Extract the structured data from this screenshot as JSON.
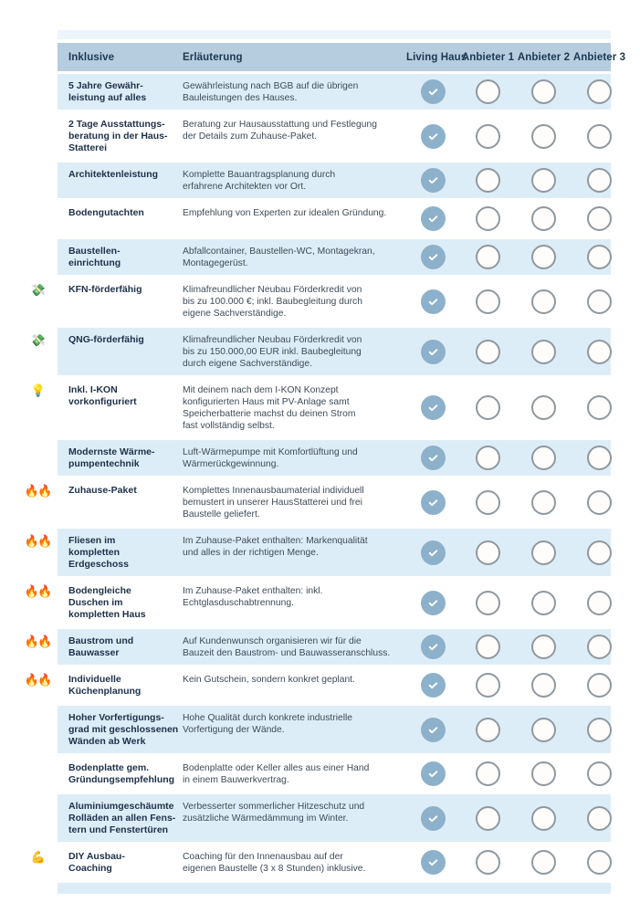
{
  "table": {
    "header": {
      "columns": [
        "Inklusive",
        "Erläuterung",
        "Living Haus",
        "Anbieter 1",
        "Anbieter 2",
        "Anbieter 3"
      ]
    },
    "provider_keys": [
      "living-haus",
      "anbieter-1",
      "anbieter-2",
      "anbieter-3"
    ],
    "rows": [
      {
        "icon": "",
        "icon_name": "",
        "title": "5 Jahre Gewähr-\nleistung auf alles",
        "description": "Gewährleistung nach BGB auf die übrigen\nBauleistungen des Hauses.",
        "checks": [
          true,
          false,
          false,
          false
        ]
      },
      {
        "icon": "",
        "icon_name": "",
        "title": "2 Tage Ausstattungs-\nberatung in der Haus-\nStatterei",
        "description": "Beratung zur Hausausstattung und Festlegung\nder Details zum Zuhause-Paket.",
        "checks": [
          true,
          false,
          false,
          false
        ]
      },
      {
        "icon": "",
        "icon_name": "",
        "title": "Architektenleistung",
        "description": "Komplette Bauantragsplanung durch\nerfahrene Architekten vor Ort.",
        "checks": [
          true,
          false,
          false,
          false
        ]
      },
      {
        "icon": "",
        "icon_name": "",
        "title": "Bodengutachten",
        "description": "Empfehlung von Experten zur idealen Gründung.",
        "checks": [
          true,
          false,
          false,
          false
        ]
      },
      {
        "icon": "",
        "icon_name": "",
        "title": "Baustellen-\neinrichtung",
        "description": "Abfallcontainer, Baustellen-WC, Montagekran,\nMontagegerüst.",
        "checks": [
          true,
          false,
          false,
          false
        ]
      },
      {
        "icon": "💸",
        "icon_name": "money-with-wings-icon",
        "title": "KFN-förderfähig",
        "description": "Klimafreundlicher Neubau Förderkredit von\nbis zu 100.000 €; inkl. Baubegleitung durch\neigene Sachverständige.",
        "checks": [
          true,
          false,
          false,
          false
        ]
      },
      {
        "icon": "💸",
        "icon_name": "money-with-wings-icon",
        "title": "QNG-förderfähig",
        "description": "Klimafreundlicher Neubau Förderkredit von\nbis zu 150.000,00 EUR inkl. Baubegleitung\ndurch eigene Sachverständige.",
        "checks": [
          true,
          false,
          false,
          false
        ]
      },
      {
        "icon": "💡",
        "icon_name": "lightbulb-icon",
        "title": "Inkl. I-KON\nvorkonfiguriert",
        "description": "Mit deinem nach dem I-KON Konzept\nkonfigurierten Haus mit PV-Anlage samt\nSpeicherbatterie machst du deinen Strom\nfast vollständig selbst.",
        "checks": [
          true,
          false,
          false,
          false
        ]
      },
      {
        "icon": "",
        "icon_name": "",
        "title": "Modernste Wärme-\npumpentechnik",
        "description": "Luft-Wärmepumpe mit Komfortlüftung und\nWärmerückgewinnung.",
        "checks": [
          true,
          false,
          false,
          false
        ]
      },
      {
        "icon": "🔥🔥",
        "icon_name": "double-fire-icon",
        "title": "Zuhause-Paket",
        "description": "Komplettes Innenausbaumaterial individuell\nbemustert in unserer HausStatterei und frei\nBaustelle geliefert.",
        "checks": [
          true,
          false,
          false,
          false
        ]
      },
      {
        "icon": "🔥🔥",
        "icon_name": "double-fire-icon",
        "title": "Fliesen im\nkompletten\nErdgeschoss",
        "description": "Im Zuhause-Paket enthalten: Markenqualität\nund alles in der richtigen Menge.",
        "checks": [
          true,
          false,
          false,
          false
        ]
      },
      {
        "icon": "🔥🔥",
        "icon_name": "double-fire-icon",
        "title": "Bodengleiche\nDuschen im\nkompletten Haus",
        "description": "Im Zuhause-Paket enthalten: inkl.\nEchtglasduschabtrennung.",
        "checks": [
          true,
          false,
          false,
          false
        ]
      },
      {
        "icon": "🔥🔥",
        "icon_name": "double-fire-icon",
        "title": "Baustrom und\nBauwasser",
        "description": "Auf Kundenwunsch organisieren wir für die\nBauzeit den Baustrom- und Bauwasseranschluss.",
        "checks": [
          true,
          false,
          false,
          false
        ]
      },
      {
        "icon": "🔥🔥",
        "icon_name": "double-fire-icon",
        "title": "Individuelle\nKüchenplanung",
        "description": "Kein Gutschein, sondern konkret geplant.",
        "checks": [
          true,
          false,
          false,
          false
        ]
      },
      {
        "icon": "",
        "icon_name": "",
        "title": "Hoher Vorfertigungs-\ngrad mit geschlossenen\nWänden ab Werk",
        "description": "Hohe Qualität durch konkrete industrielle\nVorfertigung der Wände.",
        "checks": [
          true,
          false,
          false,
          false
        ]
      },
      {
        "icon": "",
        "icon_name": "",
        "title": "Bodenplatte gem.\nGründungsempfehlung",
        "description": "Bodenplatte oder Keller alles aus einer Hand\nin einem Bauwerkvertrag.",
        "checks": [
          true,
          false,
          false,
          false
        ]
      },
      {
        "icon": "",
        "icon_name": "",
        "title": "Aluminiumgeschäumte\nRolläden an allen Fens-\ntern und Fenstertüren",
        "description": "Verbesserter sommerlicher Hitzeschutz und\nzusätzliche Wärmedämmung im Winter.",
        "checks": [
          true,
          false,
          false,
          false
        ]
      },
      {
        "icon": "💪",
        "icon_name": "flexed-biceps-icon",
        "title": "DIY Ausbau-\nCoaching",
        "description": "Coaching für den Innenausbau auf der\neigenen Baustelle (3 x 8 Stunden) inklusive.",
        "checks": [
          true,
          false,
          false,
          false
        ]
      }
    ]
  },
  "colors": {
    "header_bg": "#b5cdde",
    "row_highlight_bg": "#ddedf8",
    "check_circle_fill": "#8db1cb",
    "empty_circle_border": "#8f989f",
    "header_text": "#1d3850",
    "title_text": "#1d3048",
    "description_text": "#3e4a57"
  }
}
